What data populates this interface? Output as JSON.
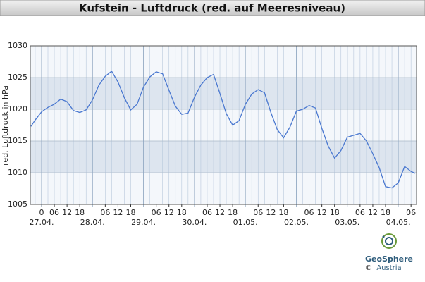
{
  "chart_data": {
    "type": "line",
    "title": "Kufstein - Luftdruck (red. auf Meeresniveau)",
    "y_label": "red. Luftdruck in hPa",
    "x": [
      -5,
      -3,
      0,
      3,
      6,
      9,
      12,
      15,
      18,
      21,
      24,
      27,
      30,
      33,
      36,
      39,
      42,
      45,
      48,
      51,
      54,
      57,
      60,
      63,
      66,
      69,
      72,
      75,
      78,
      81,
      84,
      87,
      90,
      93,
      96,
      99,
      102,
      105,
      108,
      111,
      114,
      117,
      120,
      123,
      126,
      129,
      132,
      135,
      138,
      141,
      144,
      147,
      150,
      153,
      156,
      159,
      162,
      165,
      168,
      171,
      174,
      176
    ],
    "series": [
      {
        "color": "#4a78d0",
        "values": [
          1017.3,
          1018.3,
          1019.6,
          1020.3,
          1020.8,
          1021.6,
          1021.2,
          1019.8,
          1019.5,
          1019.9,
          1021.5,
          1023.8,
          1025.2,
          1026.0,
          1024.3,
          1021.8,
          1019.9,
          1020.8,
          1023.5,
          1025.1,
          1025.9,
          1025.6,
          1023.0,
          1020.5,
          1019.2,
          1019.4,
          1021.9,
          1023.8,
          1025.0,
          1025.5,
          1022.5,
          1019.3,
          1017.5,
          1018.2,
          1020.8,
          1022.4,
          1023.1,
          1022.6,
          1019.5,
          1016.8,
          1015.5,
          1017.2,
          1019.7,
          1020.0,
          1020.6,
          1020.2,
          1017.0,
          1014.2,
          1012.3,
          1013.5,
          1015.6,
          1015.9,
          1016.2,
          1015.0,
          1013.0,
          1010.8,
          1007.8,
          1007.6,
          1008.4,
          1011.0,
          1010.2,
          1009.9
        ]
      }
    ],
    "xlim": [
      -5.3,
      176.6
    ],
    "ylim": [
      1005,
      1030
    ],
    "yticks": [
      1005,
      1010,
      1015,
      1020,
      1025,
      1030
    ],
    "xticks": [
      {
        "value": 0,
        "label": "0"
      },
      {
        "value": 6,
        "label": "06"
      },
      {
        "value": 12,
        "label": "12"
      },
      {
        "value": 18,
        "label": "18"
      },
      {
        "value": 30,
        "label": "06"
      },
      {
        "value": 36,
        "label": "12"
      },
      {
        "value": 42,
        "label": "18"
      },
      {
        "value": 54,
        "label": "06"
      },
      {
        "value": 60,
        "label": "12"
      },
      {
        "value": 66,
        "label": "18"
      },
      {
        "value": 78,
        "label": "06"
      },
      {
        "value": 84,
        "label": "12"
      },
      {
        "value": 90,
        "label": "18"
      },
      {
        "value": 102,
        "label": "06"
      },
      {
        "value": 108,
        "label": "12"
      },
      {
        "value": 114,
        "label": "18"
      },
      {
        "value": 126,
        "label": "06"
      },
      {
        "value": 132,
        "label": "12"
      },
      {
        "value": 138,
        "label": "18"
      },
      {
        "value": 150,
        "label": "06"
      },
      {
        "value": 156,
        "label": "12"
      },
      {
        "value": 162,
        "label": "18"
      },
      {
        "value": 174,
        "label": "06"
      }
    ],
    "date_ticks": [
      {
        "value": 0,
        "label": "27.04."
      },
      {
        "value": 24,
        "label": "28.04."
      },
      {
        "value": 48,
        "label": "29.04."
      },
      {
        "value": 72,
        "label": "30.04."
      },
      {
        "value": 96,
        "label": "01.05."
      },
      {
        "value": 120,
        "label": "02.05."
      },
      {
        "value": 144,
        "label": "03.05."
      },
      {
        "value": 168,
        "label": "04.05."
      }
    ],
    "grid": true,
    "logo": {
      "name": "GeoSphere",
      "sub": "Austria",
      "copyright": "©"
    }
  }
}
